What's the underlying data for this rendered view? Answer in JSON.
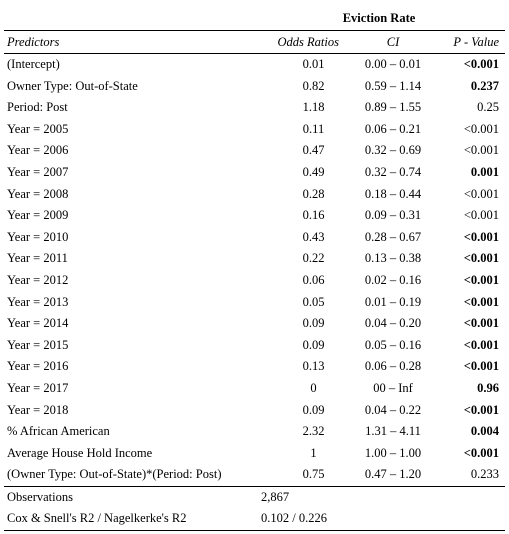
{
  "table": {
    "title": "Eviction Rate",
    "headers": {
      "predictors": "Predictors",
      "odds_ratios": "Odds Ratios",
      "ci": "CI",
      "p_value": "P - Value"
    },
    "rows": [
      {
        "predictor": "(Intercept)",
        "odds_ratio": "0.01",
        "ci": "0.00 – 0.01",
        "p": "<0.001",
        "bold": true
      },
      {
        "predictor": "Owner Type: Out-of-State",
        "odds_ratio": "0.82",
        "ci": "0.59 – 1.14",
        "p": "0.237",
        "bold": true
      },
      {
        "predictor": "Period: Post",
        "odds_ratio": "1.18",
        "ci": "0.89 – 1.55",
        "p": "0.25",
        "bold": false
      },
      {
        "predictor": "Year = 2005",
        "odds_ratio": "0.11",
        "ci": "0.06 – 0.21",
        "p": "<0.001",
        "bold": false
      },
      {
        "predictor": "Year = 2006",
        "odds_ratio": "0.47",
        "ci": "0.32 – 0.69",
        "p": "<0.001",
        "bold": false
      },
      {
        "predictor": "Year = 2007",
        "odds_ratio": "0.49",
        "ci": "0.32 – 0.74",
        "p": "0.001",
        "bold": true
      },
      {
        "predictor": "Year = 2008",
        "odds_ratio": "0.28",
        "ci": "0.18 – 0.44",
        "p": "<0.001",
        "bold": false
      },
      {
        "predictor": "Year = 2009",
        "odds_ratio": "0.16",
        "ci": "0.09 – 0.31",
        "p": "<0.001",
        "bold": false
      },
      {
        "predictor": "Year = 2010",
        "odds_ratio": "0.43",
        "ci": "0.28 – 0.67",
        "p": "<0.001",
        "bold": true
      },
      {
        "predictor": "Year = 2011",
        "odds_ratio": "0.22",
        "ci": "0.13 – 0.38",
        "p": "<0.001",
        "bold": true
      },
      {
        "predictor": "Year = 2012",
        "odds_ratio": "0.06",
        "ci": "0.02 – 0.16",
        "p": "<0.001",
        "bold": true
      },
      {
        "predictor": "Year = 2013",
        "odds_ratio": "0.05",
        "ci": "0.01 – 0.19",
        "p": "<0.001",
        "bold": true
      },
      {
        "predictor": "Year = 2014",
        "odds_ratio": "0.09",
        "ci": "0.04 – 0.20",
        "p": "<0.001",
        "bold": true
      },
      {
        "predictor": "Year = 2015",
        "odds_ratio": "0.09",
        "ci": "0.05 – 0.16",
        "p": "<0.001",
        "bold": true
      },
      {
        "predictor": "Year = 2016",
        "odds_ratio": "0.13",
        "ci": "0.06 – 0.28",
        "p": "<0.001",
        "bold": true
      },
      {
        "predictor": "Year = 2017",
        "odds_ratio": "0",
        "ci": "00 – Inf",
        "p": "0.96",
        "bold": true
      },
      {
        "predictor": "Year = 2018",
        "odds_ratio": "0.09",
        "ci": "0.04 – 0.22",
        "p": "<0.001",
        "bold": true
      },
      {
        "predictor": "% African American",
        "odds_ratio": "2.32",
        "ci": "1.31 – 4.11",
        "p": "0.004",
        "bold": true
      },
      {
        "predictor": "Average House Hold Income",
        "odds_ratio": "1",
        "ci": "1.00 – 1.00",
        "p": "<0.001",
        "bold": true
      },
      {
        "predictor": "(Owner Type: Out-of-State)*(Period: Post)",
        "odds_ratio": "0.75",
        "ci": "0.47 – 1.20",
        "p": "0.233",
        "bold": false
      }
    ],
    "stats": [
      {
        "label": "Observations",
        "value": "2,867"
      },
      {
        "label": "Cox & Snell's R2 / Nagelkerke's R2",
        "value": "0.102 / 0.226"
      }
    ]
  }
}
